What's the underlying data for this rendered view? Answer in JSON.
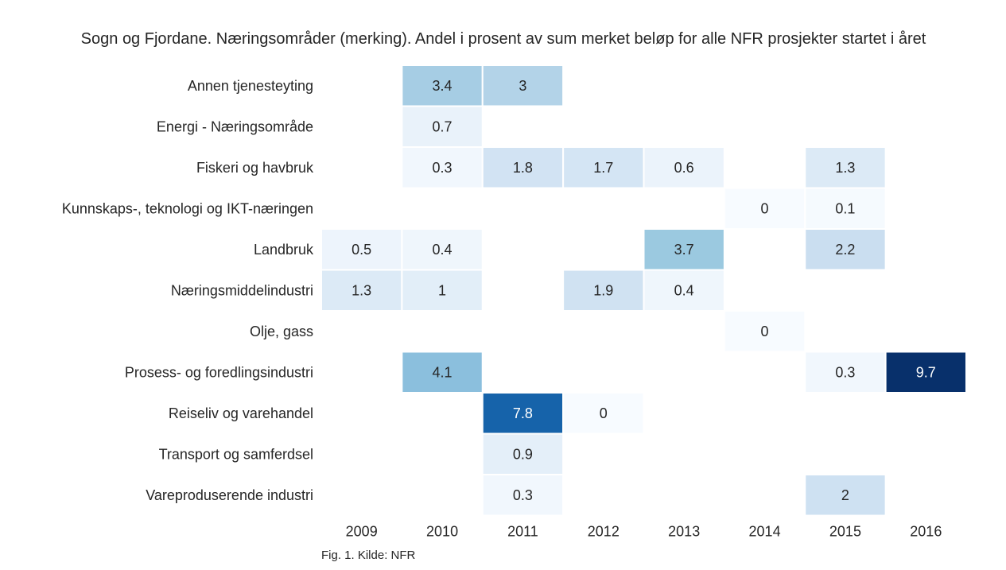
{
  "chart_data": {
    "type": "heatmap",
    "title": "Sogn og Fjordane. Næringsområder (merking). Andel i prosent av sum merket beløp for alle NFR prosjekter startet i året",
    "caption": "Fig. 1. Kilde: NFR",
    "x": [
      "2009",
      "2010",
      "2011",
      "2012",
      "2013",
      "2014",
      "2015",
      "2016"
    ],
    "y": [
      "Annen tjenesteyting",
      "Energi - Næringsområde",
      "Fiskeri og havbruk",
      "Kunnskaps-, teknologi og IKT-næringen",
      "Landbruk",
      "Næringsmiddelindustri",
      "Olje, gass",
      "Prosess- og foredlingsindustri",
      "Reiseliv og varehandel",
      "Transport og samferdsel",
      "Vareproduserende industri"
    ],
    "values": [
      [
        null,
        3.4,
        3,
        null,
        null,
        null,
        null,
        null
      ],
      [
        null,
        0.7,
        null,
        null,
        null,
        null,
        null,
        null
      ],
      [
        null,
        0.3,
        1.8,
        1.7,
        0.6,
        null,
        1.3,
        null
      ],
      [
        null,
        null,
        null,
        null,
        null,
        0,
        0.1,
        null
      ],
      [
        0.5,
        0.4,
        null,
        null,
        3.7,
        null,
        2.2,
        null
      ],
      [
        1.3,
        1,
        null,
        1.9,
        0.4,
        null,
        null,
        null
      ],
      [
        null,
        null,
        null,
        null,
        null,
        0,
        null,
        null
      ],
      [
        null,
        4.1,
        null,
        null,
        null,
        null,
        0.3,
        9.7
      ],
      [
        null,
        null,
        7.8,
        0,
        null,
        null,
        null,
        null
      ],
      [
        null,
        null,
        0.9,
        null,
        null,
        null,
        null,
        null
      ],
      [
        null,
        null,
        0.3,
        null,
        null,
        null,
        2,
        null
      ]
    ],
    "colormap": "Blues",
    "value_range": [
      0,
      9.7
    ],
    "grid": false,
    "legend": "none"
  }
}
